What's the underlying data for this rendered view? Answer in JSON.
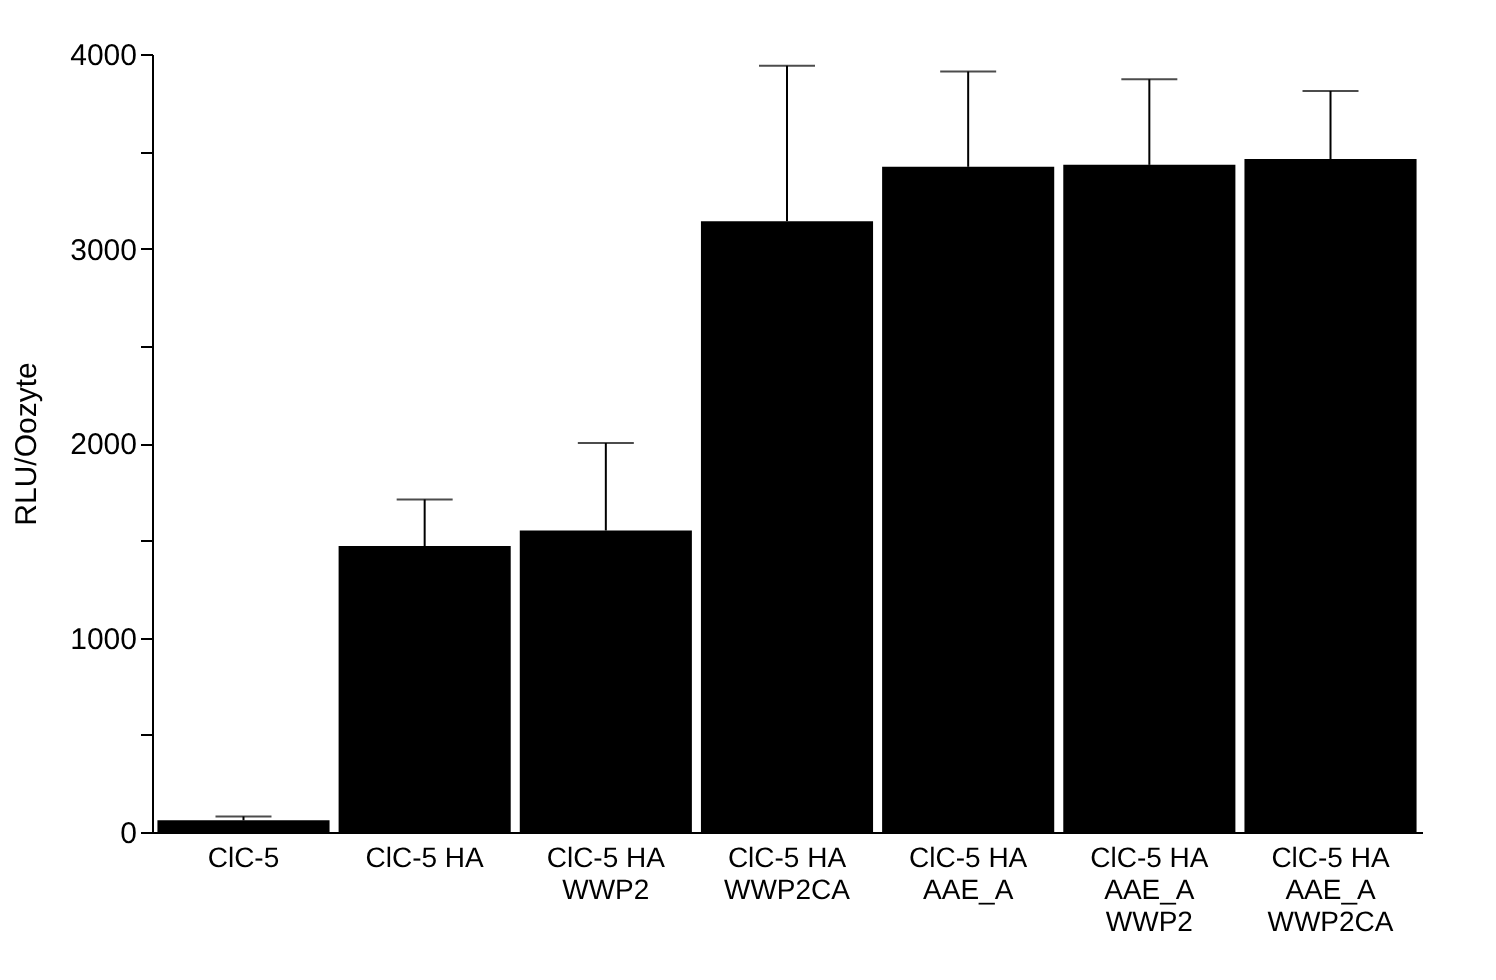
{
  "chart_data": {
    "type": "bar",
    "ylabel": "RLU/Oozyte",
    "categories": [
      "ClC-5",
      "ClC-5 HA",
      "ClC-5 HA\nWWP2",
      "ClC-5 HA\nWWP2CA",
      "ClC-5 HA\nAAE_A",
      "ClC-5 HA\nAAE_A\nWWP2",
      "ClC-5 HA\nAAE_A\nWWP2CA"
    ],
    "values": [
      60,
      1470,
      1550,
      3140,
      3420,
      3430,
      3460
    ],
    "errors": [
      [
        60,
        80
      ],
      [
        1470,
        1710
      ],
      [
        1550,
        2000
      ],
      [
        3140,
        3940
      ],
      [
        3420,
        3910
      ],
      [
        3430,
        3870
      ],
      [
        3460,
        3810
      ]
    ],
    "color": "#000000",
    "ylim": [
      0,
      4000
    ],
    "yticks": [
      0,
      {
        "value": 500,
        "label": null
      },
      1000,
      {
        "value": 1500,
        "label": null
      },
      2000,
      {
        "value": 2500,
        "label": null
      },
      3000,
      {
        "value": 3500,
        "label": null
      },
      4000
    ],
    "grid": false
  }
}
